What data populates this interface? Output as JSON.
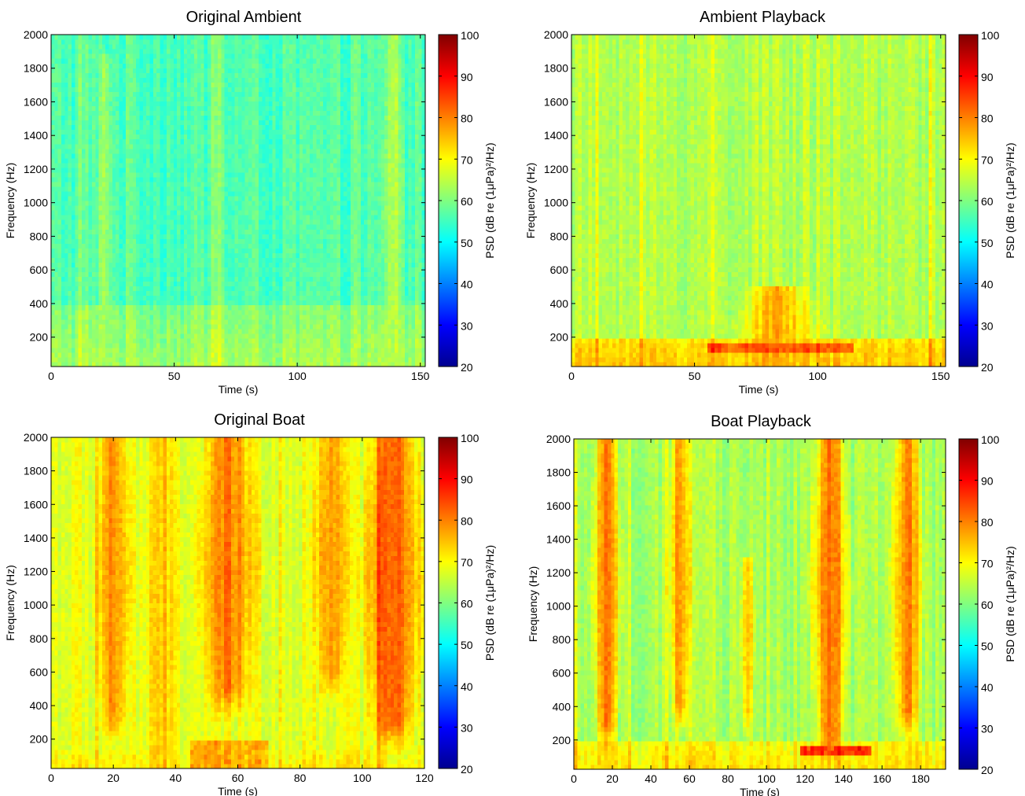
{
  "colormap": [
    "#00008f",
    "#0000ff",
    "#0080ff",
    "#00ffff",
    "#80ff80",
    "#ffff00",
    "#ff8000",
    "#ff0000",
    "#800000"
  ],
  "chart_data": [
    {
      "type": "heatmap",
      "title": "Original Ambient",
      "xlabel": "Time (s)",
      "ylabel": "Frequency (Hz)",
      "xlim": [
        0,
        152
      ],
      "ylim": [
        25,
        2000
      ],
      "xticks": [
        0,
        50,
        100,
        150
      ],
      "yticks": [
        200,
        400,
        600,
        800,
        1000,
        1200,
        1400,
        1600,
        1800,
        2000
      ],
      "colorbar": {
        "label": "PSD (dB re (1μPa)²/Hz)",
        "range": [
          20,
          100
        ],
        "ticks": [
          20,
          30,
          40,
          50,
          60,
          70,
          80,
          90,
          100
        ]
      },
      "base_level_db": 56,
      "low_band": {
        "max_hz": 380,
        "level_db": 63
      },
      "hot_bands": [
        {
          "time_s": 22,
          "width_s": 1.5,
          "fmax_hz": 1900,
          "peak_db": 64
        },
        {
          "time_s": 139,
          "width_s": 2,
          "fmax_hz": 2000,
          "peak_db": 65
        }
      ],
      "hot_spots": []
    },
    {
      "type": "heatmap",
      "title": "Ambient Playback",
      "xlabel": "Time (s)",
      "ylabel": "Frequency (Hz)",
      "xlim": [
        0,
        152
      ],
      "ylim": [
        25,
        2000
      ],
      "xticks": [
        0,
        50,
        100,
        150
      ],
      "yticks": [
        200,
        400,
        600,
        800,
        1000,
        1200,
        1400,
        1600,
        1800,
        2000
      ],
      "colorbar": {
        "label": "PSD (dB re (1μPa)²/Hz)",
        "range": [
          20,
          100
        ],
        "ticks": [
          20,
          30,
          40,
          50,
          60,
          70,
          80,
          90,
          100
        ]
      },
      "base_level_db": 64,
      "low_band": {
        "max_hz": 200,
        "level_db": 75
      },
      "hot_bands": [
        {
          "time_s": 84,
          "width_s": 8,
          "fmax_hz": 500,
          "peak_db": 76
        }
      ],
      "hot_spots": [
        {
          "t0": 55,
          "t1": 115,
          "f0": 110,
          "f1": 170,
          "level_db": 85
        }
      ]
    },
    {
      "type": "heatmap",
      "title": "Original Boat",
      "xlabel": "Time (s)",
      "ylabel": "Frequency (Hz)",
      "xlim": [
        0,
        120
      ],
      "ylim": [
        25,
        2000
      ],
      "xticks": [
        0,
        20,
        40,
        60,
        80,
        100,
        120
      ],
      "yticks": [
        200,
        400,
        600,
        800,
        1000,
        1200,
        1400,
        1600,
        1800,
        2000
      ],
      "colorbar": {
        "label": "PSD (dB re (1μPa)²/Hz)",
        "range": [
          20,
          100
        ],
        "ticks": [
          20,
          30,
          40,
          50,
          60,
          70,
          80,
          90,
          100
        ]
      },
      "base_level_db": 68,
      "low_band": {
        "max_hz": 150,
        "level_db": 72
      },
      "hot_bands": [
        {
          "time_s": 20,
          "width_s": 3,
          "fmax_hz": 2000,
          "fmin_hz": 350,
          "peak_db": 79
        },
        {
          "time_s": 36,
          "width_s": 3,
          "fmax_hz": 2000,
          "peak_db": 74
        },
        {
          "time_s": 57,
          "width_s": 5,
          "fmax_hz": 2000,
          "fmin_hz": 500,
          "peak_db": 80
        },
        {
          "time_s": 90,
          "width_s": 3,
          "fmax_hz": 2000,
          "fmin_hz": 600,
          "peak_db": 79
        },
        {
          "time_s": 110,
          "width_s": 5,
          "fmax_hz": 2000,
          "fmin_hz": 300,
          "peak_db": 84
        }
      ],
      "hot_spots": [
        {
          "t0": 45,
          "t1": 70,
          "f0": 25,
          "f1": 200,
          "level_db": 78
        }
      ]
    },
    {
      "type": "heatmap",
      "title": "Boat Playback",
      "xlabel": "Time (s)",
      "ylabel": "Frequency (Hz)",
      "xlim": [
        0,
        193
      ],
      "ylim": [
        25,
        2000
      ],
      "xticks": [
        0,
        20,
        40,
        60,
        80,
        100,
        120,
        140,
        160,
        180
      ],
      "yticks": [
        200,
        400,
        600,
        800,
        1000,
        1200,
        1400,
        1600,
        1800,
        2000
      ],
      "colorbar": {
        "label": "PSD (dB re (1μPa)²/Hz)",
        "range": [
          20,
          100
        ],
        "ticks": [
          20,
          30,
          40,
          50,
          60,
          70,
          80,
          90,
          100
        ]
      },
      "base_level_db": 63,
      "low_band": {
        "max_hz": 200,
        "level_db": 72
      },
      "hot_bands": [
        {
          "time_s": 17,
          "width_s": 4,
          "fmax_hz": 2000,
          "fmin_hz": 300,
          "peak_db": 79
        },
        {
          "time_s": 55,
          "width_s": 3,
          "fmax_hz": 2000,
          "fmin_hz": 400,
          "peak_db": 78
        },
        {
          "time_s": 90,
          "width_s": 2,
          "fmax_hz": 1300,
          "fmin_hz": 350,
          "peak_db": 76
        },
        {
          "time_s": 133,
          "width_s": 5,
          "fmax_hz": 2000,
          "fmin_hz": 200,
          "peak_db": 82
        },
        {
          "time_s": 173,
          "width_s": 4,
          "fmax_hz": 2000,
          "fmin_hz": 350,
          "peak_db": 79
        }
      ],
      "hot_spots": [
        {
          "t0": 118,
          "t1": 155,
          "f0": 110,
          "f1": 180,
          "level_db": 88
        }
      ]
    }
  ]
}
